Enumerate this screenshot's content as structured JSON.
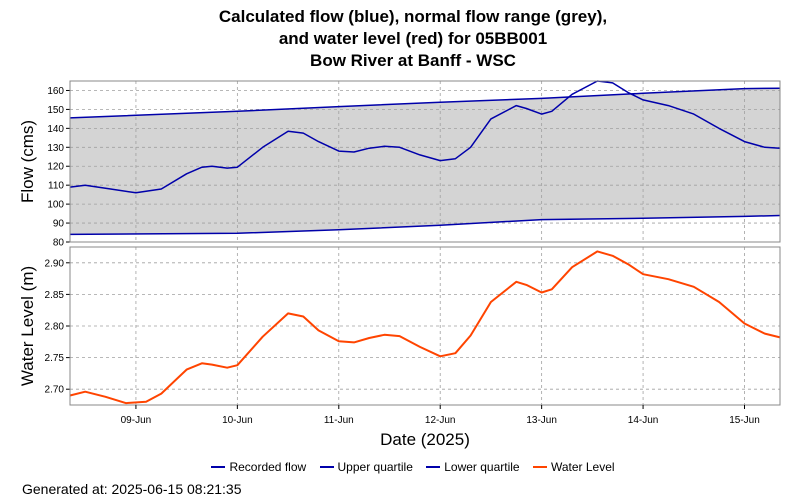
{
  "title": {
    "line1": "Calculated flow (blue), normal flow range (grey),",
    "line2": "and water level (red) for 05BB001",
    "line3": "Bow River at Banff - WSC"
  },
  "colors": {
    "flow": "#0000aa",
    "water_level": "#ff4400",
    "range_fill": "#d4d4d4",
    "grid": "#a0a0a0",
    "plot_border": "#888888"
  },
  "chart_data": [
    {
      "type": "area",
      "ylabel": "Flow (cms)",
      "ylim": [
        80,
        165
      ],
      "yticks": [
        80,
        90,
        100,
        110,
        120,
        130,
        140,
        150,
        160
      ],
      "xlim": [
        8.35,
        15.35
      ],
      "x_unit": "day of June 2025",
      "grid": true,
      "series": [
        {
          "name": "Upper quartile",
          "x": [
            8.35,
            10.0,
            11.0,
            12.0,
            13.0,
            14.0,
            15.0,
            15.35
          ],
          "y": [
            145.5,
            149.0,
            151.5,
            153.8,
            155.8,
            158.5,
            161.0,
            161.2
          ]
        },
        {
          "name": "Lower quartile",
          "x": [
            8.35,
            10.0,
            11.0,
            12.0,
            13.0,
            14.0,
            15.0,
            15.35
          ],
          "y": [
            84.0,
            84.6,
            86.5,
            88.8,
            91.8,
            92.5,
            93.5,
            94.0
          ]
        },
        {
          "name": "Recorded flow",
          "x": [
            8.35,
            8.5,
            8.75,
            9.0,
            9.25,
            9.5,
            9.65,
            9.75,
            9.9,
            10.0,
            10.25,
            10.5,
            10.65,
            10.8,
            11.0,
            11.15,
            11.3,
            11.45,
            11.6,
            11.8,
            12.0,
            12.15,
            12.3,
            12.5,
            12.75,
            12.85,
            13.0,
            13.1,
            13.3,
            13.55,
            13.7,
            13.85,
            14.0,
            14.25,
            14.5,
            14.75,
            15.0,
            15.2,
            15.35
          ],
          "y": [
            109.0,
            110.0,
            108.0,
            106.0,
            108.0,
            116.0,
            119.5,
            120.0,
            119.0,
            119.5,
            130.0,
            138.5,
            137.5,
            133.0,
            128.0,
            127.5,
            129.5,
            130.5,
            130.0,
            126.0,
            123.0,
            124.0,
            130.0,
            145.0,
            152.0,
            150.5,
            147.5,
            149.0,
            158.0,
            165.0,
            164.0,
            159.0,
            155.0,
            152.0,
            147.5,
            140.0,
            133.0,
            130.0,
            129.5
          ]
        }
      ]
    },
    {
      "type": "line",
      "xlabel": "Date (2025)",
      "ylabel": "Water Level (m)",
      "ylim": [
        2.675,
        2.925
      ],
      "yticks": [
        2.7,
        2.75,
        2.8,
        2.85,
        2.9
      ],
      "xlim": [
        8.35,
        15.35
      ],
      "x_unit": "day of June 2025",
      "xticks": [
        9,
        10,
        11,
        12,
        13,
        14,
        15
      ],
      "xtick_labels": [
        "09-Jun",
        "10-Jun",
        "11-Jun",
        "12-Jun",
        "13-Jun",
        "14-Jun",
        "15-Jun"
      ],
      "grid": true,
      "series": [
        {
          "name": "Water Level",
          "x": [
            8.35,
            8.5,
            8.7,
            8.9,
            9.1,
            9.25,
            9.5,
            9.65,
            9.75,
            9.9,
            10.0,
            10.25,
            10.5,
            10.65,
            10.8,
            11.0,
            11.15,
            11.3,
            11.45,
            11.6,
            11.8,
            12.0,
            12.15,
            12.3,
            12.5,
            12.75,
            12.85,
            13.0,
            13.1,
            13.3,
            13.55,
            13.7,
            13.85,
            14.0,
            14.25,
            14.5,
            14.75,
            15.0,
            15.2,
            15.35
          ],
          "y": [
            2.69,
            2.696,
            2.688,
            2.678,
            2.68,
            2.693,
            2.731,
            2.741,
            2.739,
            2.734,
            2.738,
            2.783,
            2.82,
            2.815,
            2.793,
            2.776,
            2.774,
            2.781,
            2.786,
            2.784,
            2.767,
            2.752,
            2.757,
            2.785,
            2.838,
            2.87,
            2.865,
            2.853,
            2.858,
            2.893,
            2.918,
            2.911,
            2.898,
            2.882,
            2.874,
            2.862,
            2.838,
            2.804,
            2.788,
            2.782
          ]
        }
      ]
    }
  ],
  "legend": {
    "items": [
      {
        "label": "Recorded flow",
        "color": "#0000aa"
      },
      {
        "label": "Upper quartile",
        "color": "#0000aa"
      },
      {
        "label": "Lower quartile",
        "color": "#0000aa"
      },
      {
        "label": "Water Level",
        "color": "#ff4400"
      }
    ]
  },
  "footer": {
    "generated": "Generated at: 2025-06-15 08:21:35"
  }
}
